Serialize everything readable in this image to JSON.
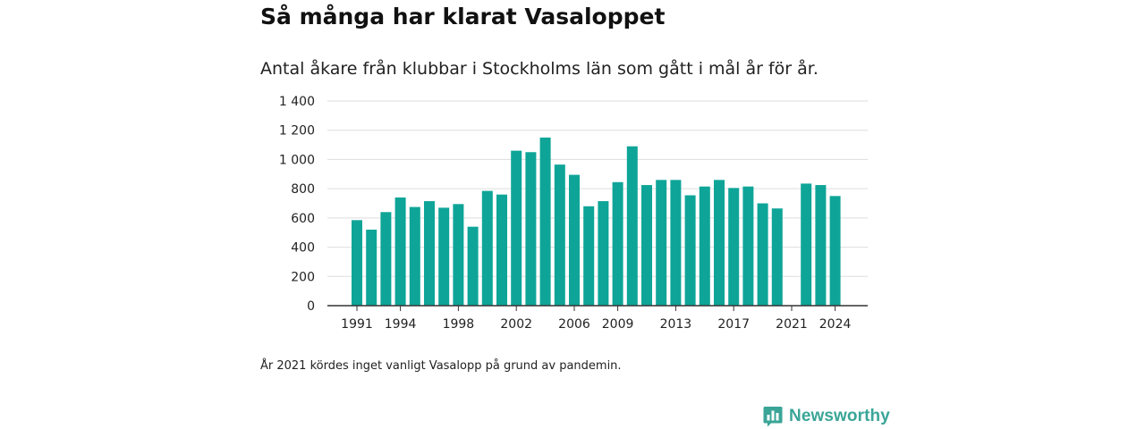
{
  "header": {
    "title": "Så många har klarat Vasaloppet",
    "subtitle": "Antal åkare från klubbar i Stockholms län som gått i mål år för år."
  },
  "footer": {
    "note": "År 2021 kördes inget vanligt Vasalopp på grund av pandemin.",
    "brand": "Newsworthy"
  },
  "colors": {
    "bar": "#0ea598",
    "grid": "#dddddd",
    "axis": "#333333",
    "brand": "#3aa597"
  },
  "chart_data": {
    "type": "bar",
    "title": "Så många har klarat Vasaloppet",
    "subtitle": "Antal åkare från klubbar i Stockholms län som gått i mål år för år.",
    "xlabel": "",
    "ylabel": "",
    "ylim": [
      0,
      1400
    ],
    "y_ticks": [
      0,
      200,
      400,
      600,
      800,
      1000,
      1200,
      1400
    ],
    "y_tick_labels": [
      "0",
      "200",
      "400",
      "600",
      "800",
      "1 000",
      "1 200",
      "1 400"
    ],
    "x_tick_labels": [
      "1991",
      "1994",
      "1998",
      "2002",
      "2006",
      "2009",
      "2013",
      "2017",
      "2021",
      "2024"
    ],
    "grid": true,
    "legend": "none",
    "categories": [
      "1991",
      "1992",
      "1993",
      "1994",
      "1995",
      "1996",
      "1997",
      "1998",
      "1999",
      "2000",
      "2001",
      "2002",
      "2003",
      "2004",
      "2005",
      "2006",
      "2007",
      "2008",
      "2009",
      "2010",
      "2011",
      "2012",
      "2013",
      "2014",
      "2015",
      "2016",
      "2017",
      "2018",
      "2019",
      "2020",
      "2021",
      "2022",
      "2023",
      "2024"
    ],
    "values": [
      585,
      520,
      640,
      740,
      675,
      715,
      670,
      695,
      540,
      785,
      760,
      1060,
      1050,
      1150,
      965,
      895,
      680,
      715,
      845,
      1090,
      825,
      860,
      860,
      755,
      815,
      860,
      805,
      815,
      700,
      665,
      null,
      835,
      825,
      750
    ]
  }
}
